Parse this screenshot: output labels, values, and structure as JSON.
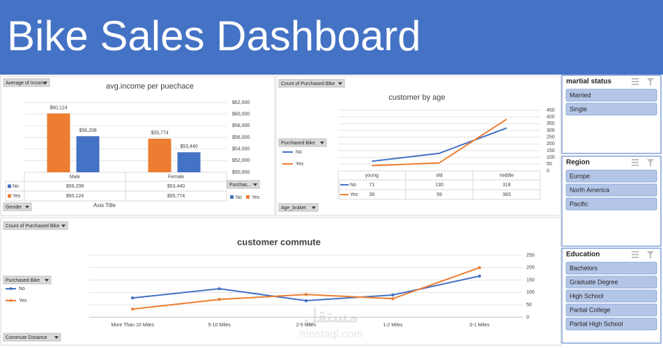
{
  "header": {
    "title": "Bike Sales Dashboard"
  },
  "chart_data": [
    {
      "type": "bar",
      "title": "avg.income per puechace",
      "x_axis_title": "Axis Title",
      "value_field": "Average of Income",
      "axis_field": "Gender",
      "legend_field": "Purchas...",
      "categories": [
        "Male",
        "Female"
      ],
      "series": [
        {
          "name": "No",
          "color": "#4472c4",
          "values": [
            56208,
            53440
          ],
          "value_labels": [
            "$56,208",
            "$53,440"
          ]
        },
        {
          "name": "Yes",
          "color": "#ed7d31",
          "values": [
            60124,
            55774
          ],
          "value_labels": [
            "$60,124",
            "$55,774"
          ]
        }
      ],
      "ylim": [
        50000,
        62000
      ],
      "yticks": [
        {
          "value": 50000,
          "label": "$50,000"
        },
        {
          "value": 52000,
          "label": "$52,000"
        },
        {
          "value": 54000,
          "label": "$54,000"
        },
        {
          "value": 56000,
          "label": "$56,000"
        },
        {
          "value": 58000,
          "label": "$58,000"
        },
        {
          "value": 60000,
          "label": "$60,000"
        },
        {
          "value": 62000,
          "label": "$62,000"
        }
      ],
      "grid": true
    },
    {
      "type": "line",
      "title": "customer by age",
      "value_field": "Count of Purchased Bike",
      "axis_field": "Age_braket",
      "legend_field": "Purchased Bike",
      "categories": [
        "young",
        "old",
        "middle"
      ],
      "series": [
        {
          "name": "No",
          "color": "#4472c4",
          "values": [
            71,
            130,
            318
          ]
        },
        {
          "name": "Yes",
          "color": "#ed7d31",
          "values": [
            39,
            59,
            383
          ]
        }
      ],
      "ylim": [
        0,
        450
      ],
      "yticks": [
        0,
        50,
        100,
        150,
        200,
        250,
        300,
        350,
        400,
        450
      ],
      "grid": true
    },
    {
      "type": "line",
      "title": "customer commute",
      "markers": true,
      "value_field": "Count of Purchased Bike",
      "axis_field": "Commute Distance",
      "legend_field": "Purchased Bike",
      "categories": [
        "More Than 10 Miles",
        "5-10 Miles",
        "2-5 Miles",
        "1-2 Miles",
        "0-1 Miles"
      ],
      "series": [
        {
          "name": "No",
          "color": "#4472c4",
          "values": [
            78,
            115,
            67,
            90,
            166
          ]
        },
        {
          "name": "Yes",
          "color": "#ed7d31",
          "values": [
            33,
            72,
            92,
            75,
            200
          ]
        }
      ],
      "ylim": [
        0,
        250
      ],
      "yticks": [
        0,
        50,
        100,
        150,
        200,
        250
      ],
      "grid": true
    }
  ],
  "slicers": [
    {
      "title": "martial status",
      "items": [
        "Married",
        "Single"
      ]
    },
    {
      "title": "Region",
      "items": [
        "Europe",
        "North America",
        "Pacific"
      ]
    },
    {
      "title": "Education",
      "items": [
        "Bachelors",
        "Graduate Degree",
        "High School",
        "Partial College",
        "Partial High School"
      ]
    }
  ],
  "watermark": {
    "arabic": "مستقل",
    "latin": "mostaql.com"
  }
}
